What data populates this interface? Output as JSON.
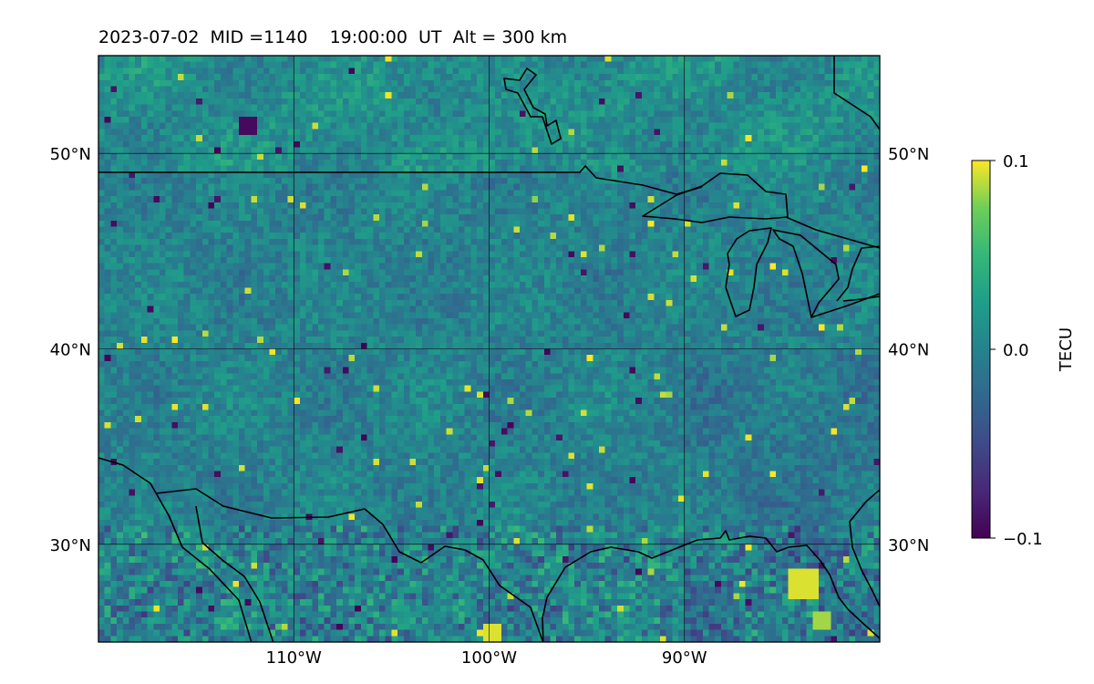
{
  "title": "2023-07-02  MID =1140    19:00:00  UT  Alt = 300 km",
  "map": {
    "lon_range": [
      -120,
      -80
    ],
    "lat_range": [
      25,
      55
    ],
    "lon_ticks": [
      {
        "lon": -110,
        "label": "110°W"
      },
      {
        "lon": -100,
        "label": "100°W"
      },
      {
        "lon": -90,
        "label": "90°W"
      }
    ],
    "lat_ticks": [
      {
        "lat": 30,
        "label": "30°N"
      },
      {
        "lat": 40,
        "label": "40°N"
      },
      {
        "lat": 50,
        "label": "50°N"
      }
    ],
    "grid": true,
    "colormap": "viridis",
    "colors": {
      "low": "#440154",
      "mid": "#21918c",
      "high": "#fde725",
      "coastline": "#000000"
    }
  },
  "colorbar": {
    "label": "TECU",
    "min": -0.1,
    "max": 0.1,
    "ticks": [
      {
        "value": 0.1,
        "label": "0.1"
      },
      {
        "value": 0.0,
        "label": "0.0"
      },
      {
        "value": -0.1,
        "label": "−0.1"
      }
    ]
  }
}
